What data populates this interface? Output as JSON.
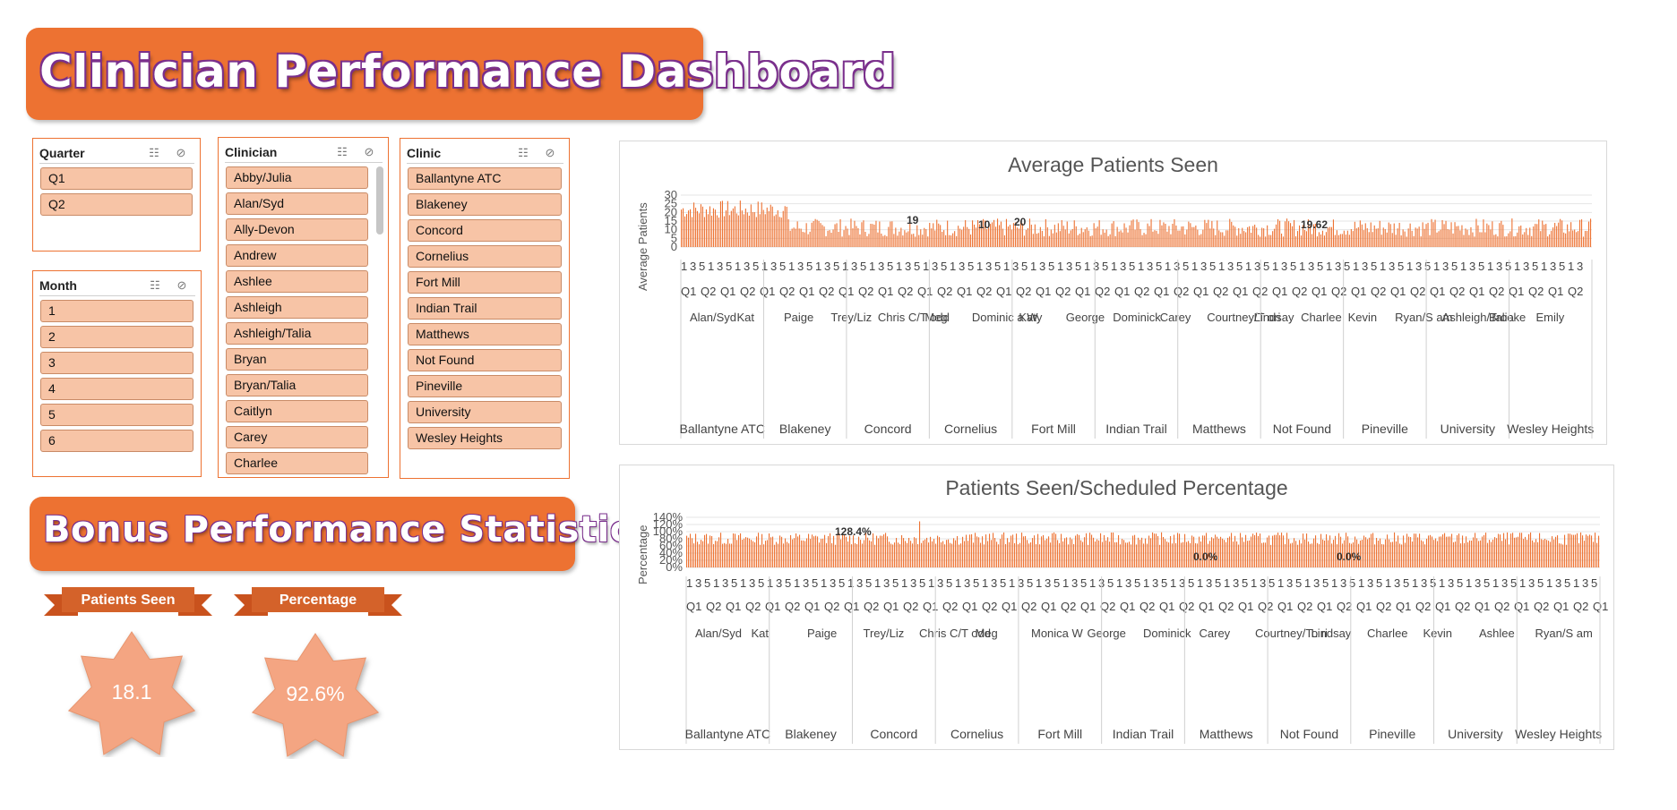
{
  "header": {
    "title": "Clinician Performance Dashboard"
  },
  "bonus": {
    "title": "Bonus Performance Statistics",
    "patients_seen_label": "Patients Seen",
    "patients_seen_value": "18.1",
    "percentage_label": "Percentage",
    "percentage_value": "92.6%"
  },
  "slicers": {
    "quarter": {
      "title": "Quarter",
      "items": [
        "Q1",
        "Q2"
      ]
    },
    "month": {
      "title": "Month",
      "items": [
        "1",
        "2",
        "3",
        "4",
        "5",
        "6"
      ]
    },
    "clinician": {
      "title": "Clinician",
      "items": [
        "Abby/Julia",
        "Alan/Syd",
        "Ally-Devon",
        "Andrew",
        "Ashlee",
        "Ashleigh",
        "Ashleigh/Talia",
        "Bryan",
        "Bryan/Talia",
        "Caitlyn",
        "Carey",
        "Charlee"
      ]
    },
    "clinic": {
      "title": "Clinic",
      "items": [
        "Ballantyne ATC",
        "Blakeney",
        "Concord",
        "Cornelius",
        "Fort Mill",
        "Indian Trail",
        "Matthews",
        "Not Found",
        "Pineville",
        "University",
        "Wesley Heights"
      ]
    }
  },
  "icons": {
    "multi_select": "multi-select-icon",
    "clear_filter": "clear-filter-icon"
  },
  "colors": {
    "accent": "#ED7232",
    "slicer_item": "#F7C4A6",
    "ribbon": "#C9521D",
    "star": "#F4A582"
  },
  "chart_data": [
    {
      "type": "bar",
      "title": "Average Patients Seen",
      "ylabel": "Average Patients",
      "ylim": [
        0,
        30
      ],
      "yticks": [
        "30",
        "25",
        "20",
        "15",
        "10",
        "5",
        "0"
      ],
      "groups": [
        "Ballantyne ATC",
        "Blakeney",
        "Concord",
        "Cornelius",
        "Fort Mill",
        "Indian Trail",
        "Matthews",
        "Not Found",
        "Pineville",
        "University",
        "Wesley Heights"
      ],
      "visible_labels": [
        "19.62",
        "20",
        "10",
        "19"
      ],
      "clinician_labels": [
        "Alan/Syd",
        "Kat",
        "Paige",
        "Trey/Liz",
        "Chris C/T odd",
        "Meg",
        "Dominic a W",
        "Katy",
        "George",
        "Dominick",
        "Carey",
        "Courtney/T ori",
        "Lindsay",
        "Charlee",
        "Kevin",
        "Ryan/S am",
        "Ashleigh/Talia",
        "Brooke",
        "Emily"
      ]
    },
    {
      "type": "bar",
      "title": "Patients Seen/Scheduled Percentage",
      "ylabel": "Percentage",
      "ylim": [
        0,
        140
      ],
      "yticks": [
        "140%",
        "120%",
        "100%",
        "80%",
        "60%",
        "40%",
        "20%",
        "0%"
      ],
      "groups": [
        "Ballantyne ATC",
        "Blakeney",
        "Concord",
        "Cornelius",
        "Fort Mill",
        "Indian Trail",
        "Matthews",
        "Not Found",
        "Pineville",
        "University",
        "Wesley Heights"
      ],
      "visible_labels": [
        "128.4%",
        "0.0%",
        "0.0%"
      ],
      "clinician_labels": [
        "Alan/Syd",
        "Kat",
        "Paige",
        "Trey/Liz",
        "Chris C/T odd",
        "Meg",
        "Monica W",
        "George",
        "Dominick",
        "Carey",
        "Courtney/To ri",
        "Lindsay",
        "Charlee",
        "Kevin",
        "Ashlee",
        "Ryan/S am"
      ]
    }
  ]
}
